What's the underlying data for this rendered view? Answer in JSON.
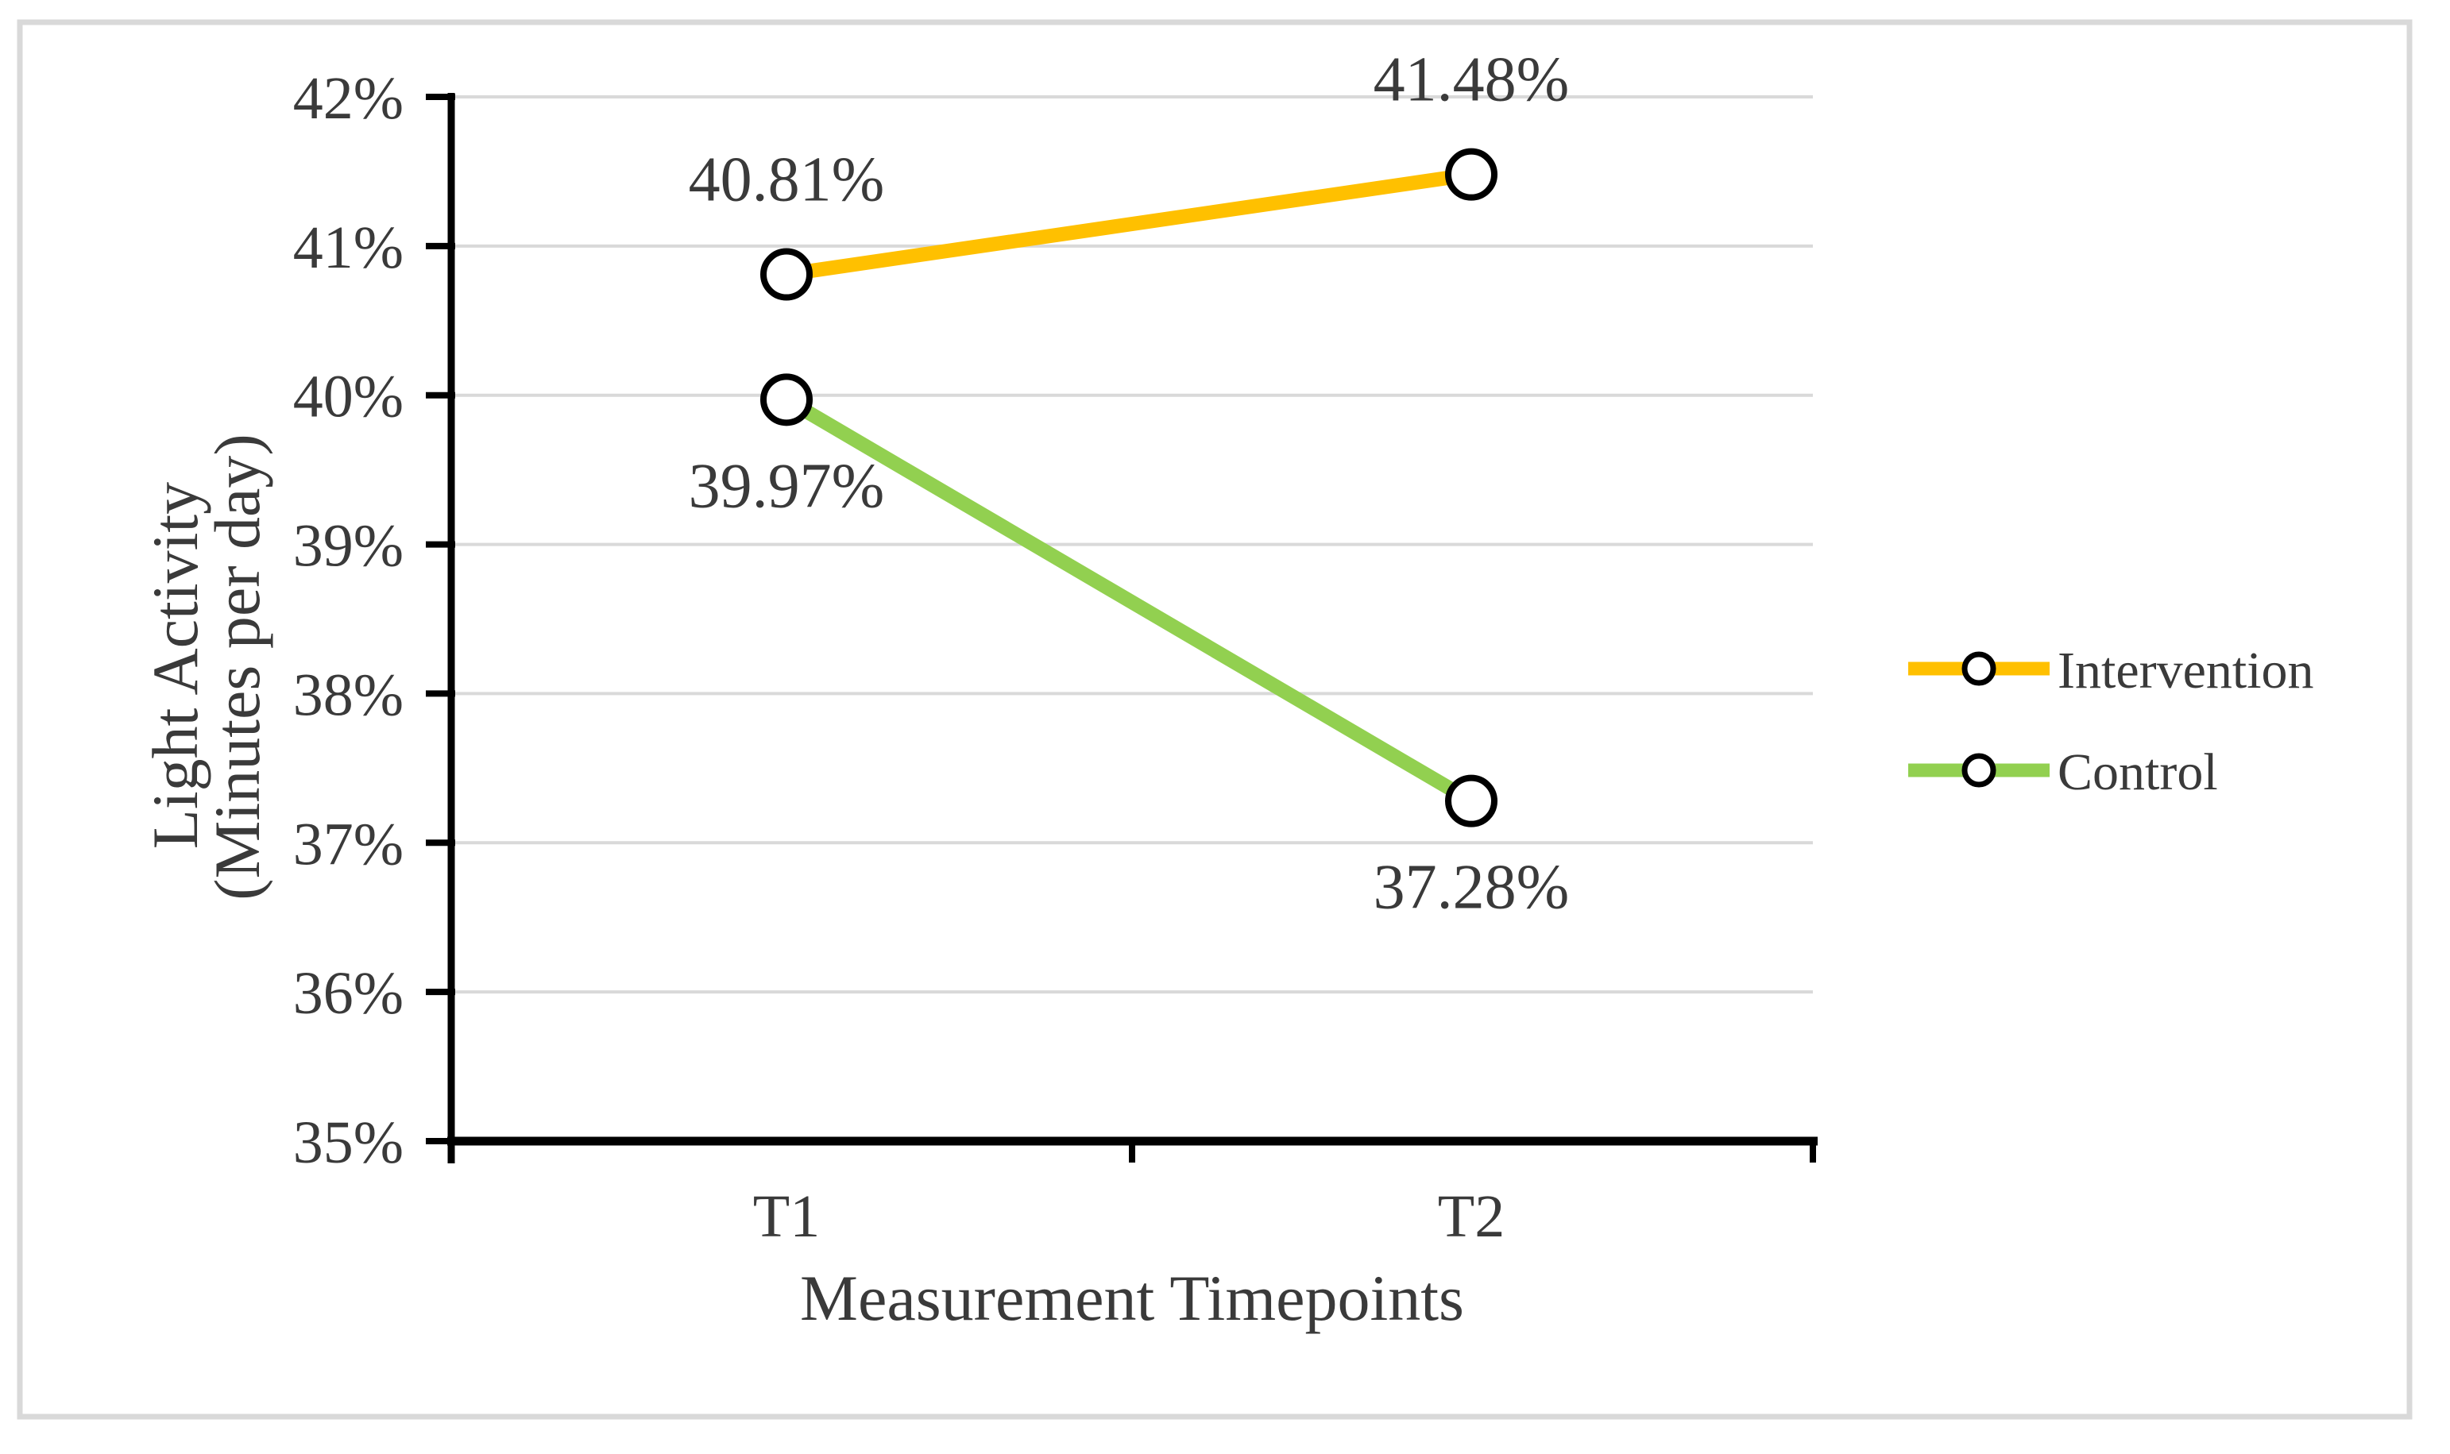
{
  "figure": {
    "description": "Line chart of light activity percentage at two measurement timepoints for Intervention and Control groups"
  },
  "chart_data": {
    "type": "line",
    "categories": [
      "T1",
      "T2"
    ],
    "series": [
      {
        "name": "Intervention",
        "color": "#FFC000",
        "values": [
          40.81,
          41.48
        ],
        "point_labels": [
          "40.81%",
          "41.48%"
        ],
        "label_side": "above"
      },
      {
        "name": "Control",
        "color": "#92D050",
        "values": [
          39.97,
          37.28
        ],
        "point_labels": [
          "39.97%",
          "37.28%"
        ],
        "label_side": "below"
      }
    ],
    "xlabel": "Measurement Timepoints",
    "ylabel_lines": [
      "Light Activity",
      "(Minutes per day)"
    ],
    "ylim": [
      35,
      42
    ],
    "ytick_step": 1,
    "ytick_labels": [
      "35%",
      "36%",
      "37%",
      "38%",
      "39%",
      "40%",
      "41%",
      "42%"
    ],
    "grid": true,
    "marker": "open-circle",
    "legend": {
      "position": "right",
      "entries": [
        "Intervention",
        "Control"
      ]
    },
    "colors": {
      "background": "#FFFFFF",
      "frame": "#D9D9D9",
      "gridline": "#D9D9D9",
      "axis": "#000000",
      "marker_fill": "#FFFFFF",
      "marker_stroke": "#000000",
      "text": "#3A3A3A"
    }
  }
}
